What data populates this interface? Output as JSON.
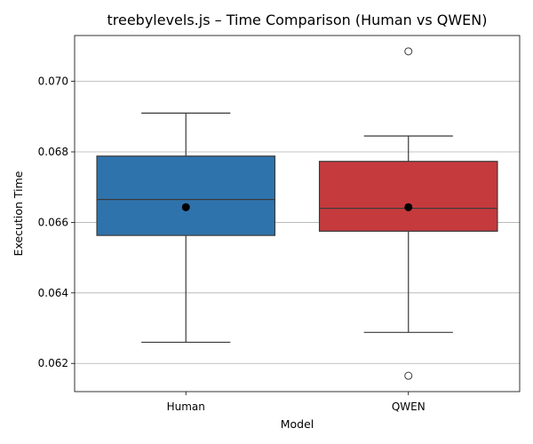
{
  "chart_data": {
    "type": "box",
    "title": "treebylevels.js – Time Comparison (Human vs QWEN)",
    "xlabel": "Model",
    "ylabel": "Execution Time",
    "ylim": [
      0.0612,
      0.0713
    ],
    "yticks": [
      {
        "value": 0.062,
        "label": "0.062"
      },
      {
        "value": 0.064,
        "label": "0.064"
      },
      {
        "value": 0.066,
        "label": "0.066"
      },
      {
        "value": 0.068,
        "label": "0.068"
      },
      {
        "value": 0.07,
        "label": "0.070"
      }
    ],
    "grid": "y",
    "categories": [
      "Human",
      "QWEN"
    ],
    "boxes": [
      {
        "category": "Human",
        "color": "#2f73ac",
        "whisker_low": 0.0626,
        "q1": 0.06563,
        "median": 0.06665,
        "q3": 0.06788,
        "whisker_high": 0.0691,
        "mean": 0.06643,
        "outliers": []
      },
      {
        "category": "QWEN",
        "color": "#c53a3d",
        "whisker_low": 0.06288,
        "q1": 0.06575,
        "median": 0.0664,
        "q3": 0.06773,
        "whisker_high": 0.06845,
        "mean": 0.06643,
        "outliers": [
          0.07085,
          0.06165
        ]
      }
    ]
  }
}
